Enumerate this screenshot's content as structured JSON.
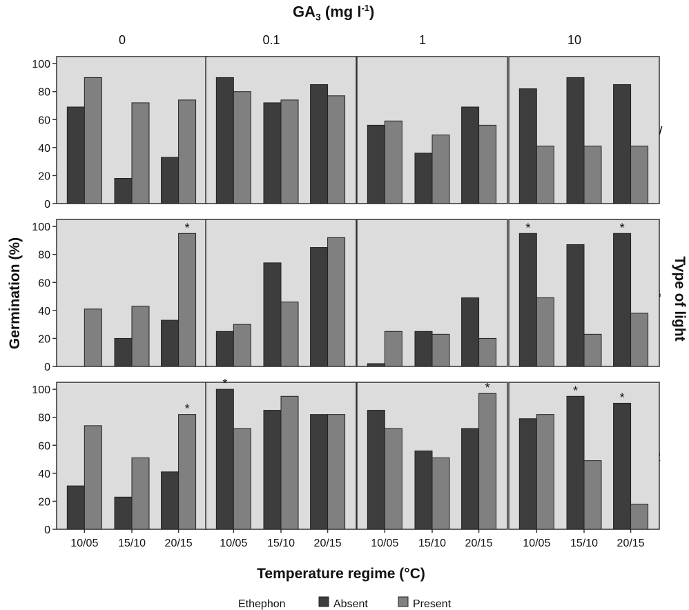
{
  "chart_data": {
    "type": "bar",
    "title_main": "GA",
    "title_sub": "3",
    "title_unit_before": " (mg l",
    "title_unit_sup": "-1",
    "title_unit_after": ")",
    "xlabel": "Temperature regime  (°C)",
    "ylabel": "Germination (%)",
    "right_label": "Type of light",
    "categories": [
      "10/05",
      "15/10",
      "20/15"
    ],
    "column_labels": [
      "0",
      "0.1",
      "1",
      "10"
    ],
    "row_labels": [
      "W",
      "G",
      "R"
    ],
    "yticks": [
      0,
      20,
      40,
      60,
      80,
      100
    ],
    "ylim": [
      0,
      105
    ],
    "legend": {
      "title": "Ethephon",
      "entries": [
        {
          "name": "Absent",
          "color": "#3d3d3d"
        },
        {
          "name": "Present",
          "color": "#808080"
        }
      ],
      "placement": "bottom"
    },
    "significance_marker": "*",
    "panel_background": "#dcdcdc",
    "panels": [
      {
        "row": "W",
        "column": "0",
        "series": [
          {
            "name": "Absent",
            "values": [
              69,
              18,
              33
            ]
          },
          {
            "name": "Present",
            "values": [
              90,
              72,
              74
            ]
          }
        ],
        "stars": {
          "Absent": [],
          "Present": []
        }
      },
      {
        "row": "W",
        "column": "0.1",
        "series": [
          {
            "name": "Absent",
            "values": [
              90,
              72,
              85
            ]
          },
          {
            "name": "Present",
            "values": [
              80,
              74,
              77
            ]
          }
        ],
        "stars": {
          "Absent": [],
          "Present": []
        }
      },
      {
        "row": "W",
        "column": "1",
        "series": [
          {
            "name": "Absent",
            "values": [
              56,
              36,
              69
            ]
          },
          {
            "name": "Present",
            "values": [
              59,
              49,
              56
            ]
          }
        ],
        "stars": {
          "Absent": [],
          "Present": []
        }
      },
      {
        "row": "W",
        "column": "10",
        "series": [
          {
            "name": "Absent",
            "values": [
              82,
              90,
              85
            ]
          },
          {
            "name": "Present",
            "values": [
              41,
              41,
              41
            ]
          }
        ],
        "stars": {
          "Absent": [],
          "Present": []
        }
      },
      {
        "row": "G",
        "column": "0",
        "series": [
          {
            "name": "Absent",
            "values": [
              0,
              20,
              33
            ]
          },
          {
            "name": "Present",
            "values": [
              41,
              43,
              95
            ]
          }
        ],
        "stars": {
          "Absent": [],
          "Present": [
            "20/15"
          ]
        }
      },
      {
        "row": "G",
        "column": "0.1",
        "series": [
          {
            "name": "Absent",
            "values": [
              25,
              74,
              85
            ]
          },
          {
            "name": "Present",
            "values": [
              30,
              46,
              92
            ]
          }
        ],
        "stars": {
          "Absent": [],
          "Present": []
        }
      },
      {
        "row": "G",
        "column": "1",
        "series": [
          {
            "name": "Absent",
            "values": [
              2,
              25,
              49
            ]
          },
          {
            "name": "Present",
            "values": [
              25,
              23,
              20
            ]
          }
        ],
        "stars": {
          "Absent": [],
          "Present": []
        }
      },
      {
        "row": "G",
        "column": "10",
        "series": [
          {
            "name": "Absent",
            "values": [
              95,
              87,
              95
            ]
          },
          {
            "name": "Present",
            "values": [
              49,
              23,
              38
            ]
          }
        ],
        "stars": {
          "Absent": [
            "10/05",
            "20/15"
          ],
          "Present": []
        }
      },
      {
        "row": "R",
        "column": "0",
        "series": [
          {
            "name": "Absent",
            "values": [
              31,
              23,
              41
            ]
          },
          {
            "name": "Present",
            "values": [
              74,
              51,
              82
            ]
          }
        ],
        "stars": {
          "Absent": [],
          "Present": [
            "20/15"
          ]
        }
      },
      {
        "row": "R",
        "column": "0.1",
        "series": [
          {
            "name": "Absent",
            "values": [
              100,
              85,
              82
            ]
          },
          {
            "name": "Present",
            "values": [
              72,
              95,
              82
            ]
          }
        ],
        "stars": {
          "Absent": [
            "10/05"
          ],
          "Present": []
        }
      },
      {
        "row": "R",
        "column": "1",
        "series": [
          {
            "name": "Absent",
            "values": [
              85,
              56,
              72
            ]
          },
          {
            "name": "Present",
            "values": [
              72,
              51,
              97
            ]
          }
        ],
        "stars": {
          "Absent": [],
          "Present": [
            "20/15"
          ]
        }
      },
      {
        "row": "R",
        "column": "10",
        "series": [
          {
            "name": "Absent",
            "values": [
              79,
              95,
              90
            ]
          },
          {
            "name": "Present",
            "values": [
              82,
              49,
              18
            ]
          }
        ],
        "stars": {
          "Absent": [
            "15/10",
            "20/15"
          ],
          "Present": []
        }
      }
    ]
  }
}
